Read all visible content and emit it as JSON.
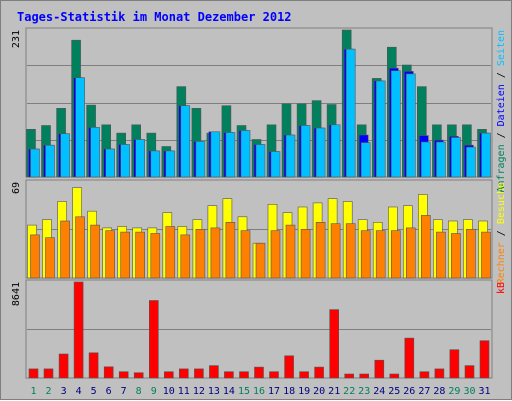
{
  "chart_data": {
    "type": "bar",
    "title": "Tages-Statistik im Monat Dezember 2012",
    "categories": [
      "1",
      "2",
      "3",
      "4",
      "5",
      "6",
      "7",
      "8",
      "9",
      "10",
      "11",
      "12",
      "13",
      "14",
      "15",
      "16",
      "17",
      "18",
      "19",
      "20",
      "21",
      "22",
      "23",
      "24",
      "25",
      "26",
      "27",
      "28",
      "29",
      "30",
      "31"
    ],
    "weekend_days": [
      "1",
      "2",
      "8",
      "9",
      "15",
      "16",
      "22",
      "23",
      "29",
      "30"
    ],
    "panels": [
      {
        "ymax": 231,
        "tick_label": "231",
        "side_labels": [
          {
            "text": "Anfragen",
            "color": "#00805c"
          },
          {
            "text": " / ",
            "color": "#000000"
          },
          {
            "text": "Dateien",
            "color": "#0000ff"
          },
          {
            "text": " / ",
            "color": "#000000"
          },
          {
            "text": "Seiten",
            "color": "#00c0ff"
          }
        ],
        "series": [
          {
            "name": "Anfragen",
            "color": "#00805c",
            "values": [
              75,
              81,
              108,
              215,
              113,
              82,
              69,
              82,
              69,
              48,
              142,
              108,
              69,
              112,
              81,
              59,
              82,
              115,
              115,
              120,
              114,
              231,
              82,
              155,
              204,
              176,
              142,
              82,
              82,
              82,
              75
            ]
          },
          {
            "name": "Dateien",
            "color": "#0000ff",
            "values": [
              44,
              50,
              68,
              156,
              78,
              44,
              51,
              59,
              41,
              41,
              112,
              56,
              71,
              70,
              73,
              51,
              40,
              66,
              81,
              77,
              82,
              201,
              66,
              151,
              171,
              166,
              65,
              58,
              64,
              50,
              69
            ]
          },
          {
            "name": "Seiten",
            "color": "#00c0ff",
            "values": [
              44,
              50,
              68,
              156,
              78,
              44,
              51,
              59,
              41,
              41,
              112,
              56,
              71,
              70,
              73,
              51,
              40,
              66,
              81,
              77,
              82,
              201,
              54,
              151,
              167,
              162,
              55,
              55,
              62,
              47,
              69
            ]
          }
        ]
      },
      {
        "ymax": 69,
        "tick_label": "69",
        "side_labels": [
          {
            "text": "Rechner",
            "color": "#ff8000"
          },
          {
            "text": " / ",
            "color": "#000000"
          },
          {
            "text": "Besuche",
            "color": "#ffff00"
          }
        ],
        "series": [
          {
            "name": "Besuche",
            "color": "#ffff00",
            "values": [
              38,
              42,
              55,
              65,
              48,
              36,
              37,
              36,
              36,
              47,
              37,
              42,
              52,
              57,
              44,
              25,
              53,
              47,
              51,
              54,
              57,
              55,
              42,
              40,
              51,
              52,
              60,
              42,
              41,
              42,
              41
            ]
          },
          {
            "name": "Rechner",
            "color": "#ff8000",
            "values": [
              31,
              29,
              41,
              44,
              38,
              34,
              33,
              33,
              32,
              37,
              31,
              35,
              36,
              40,
              34,
              25,
              34,
              38,
              35,
              40,
              39,
              39,
              34,
              34,
              34,
              36,
              45,
              33,
              32,
              35,
              33
            ]
          }
        ]
      },
      {
        "ymax": 8641,
        "tick_label": "8641",
        "side_labels": [
          {
            "text": "kB",
            "color": "#ff0000"
          }
        ],
        "series": [
          {
            "name": "kB",
            "color": "#ff0000",
            "values": [
              820,
              820,
              2163,
              8641,
              2270,
              1008,
              567,
              480,
              6979,
              567,
              820,
              820,
              1119,
              567,
              567,
              980,
              567,
              1994,
              567,
              980,
              6160,
              364,
              364,
              1603,
              364,
              3595,
              567,
              820,
              2549,
              1119,
              3354
            ]
          }
        ]
      }
    ]
  }
}
